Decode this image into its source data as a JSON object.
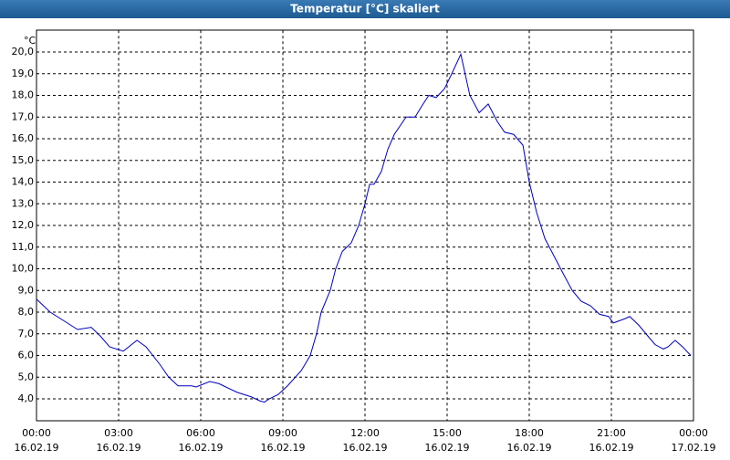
{
  "chart_data": {
    "type": "line",
    "title": "Temperatur [°C] skaliert",
    "y_label": "°C",
    "x": [
      0,
      0.5,
      1,
      1.5,
      2,
      2.33,
      2.67,
      3.17,
      3.67,
      4,
      4.5,
      4.83,
      5.17,
      5.67,
      5.83,
      6.33,
      6.67,
      6.83,
      7.33,
      7.83,
      8.17,
      8.33,
      8.5,
      8.83,
      9.17,
      9.67,
      10,
      10.23,
      10.4,
      10.73,
      10.93,
      11.17,
      11.5,
      11.77,
      12,
      12.17,
      12.33,
      12.6,
      12.83,
      13.07,
      13.5,
      13.83,
      14.07,
      14.33,
      14.6,
      14.9,
      15.17,
      15.5,
      15.83,
      16.17,
      16.5,
      16.83,
      17.1,
      17.43,
      17.77,
      18,
      18.27,
      18.57,
      18.9,
      19.23,
      19.57,
      19.9,
      20.23,
      20.57,
      20.9,
      21.07,
      21.5,
      21.67,
      22,
      22.33,
      22.6,
      22.9,
      23.07,
      23.33,
      23.6,
      23.9
    ],
    "series": [
      {
        "name": "Temperatur",
        "color": "#0000c0",
        "values": [
          8.6,
          8.0,
          7.6,
          7.2,
          7.3,
          6.9,
          6.4,
          6.2,
          6.7,
          6.4,
          5.6,
          5.0,
          4.6,
          4.6,
          4.55,
          4.8,
          4.7,
          4.6,
          4.3,
          4.1,
          3.9,
          3.85,
          4.0,
          4.2,
          4.6,
          5.3,
          6.0,
          7.0,
          8.0,
          9.0,
          10.0,
          10.8,
          11.2,
          12.0,
          13.0,
          13.9,
          13.9,
          14.5,
          15.5,
          16.2,
          17.0,
          17.0,
          17.5,
          18.0,
          17.9,
          18.3,
          19.0,
          19.9,
          18.0,
          17.2,
          17.6,
          16.8,
          16.3,
          16.2,
          15.7,
          14.0,
          12.6,
          11.4,
          10.6,
          9.8,
          9.0,
          8.5,
          8.3,
          7.9,
          7.8,
          7.5,
          7.7,
          7.8,
          7.4,
          6.9,
          6.5,
          6.3,
          6.4,
          6.7,
          6.4,
          6.0
        ]
      }
    ],
    "xlim": [
      0,
      24
    ],
    "xticks": [
      {
        "value": 0,
        "label": "00:00"
      },
      {
        "value": 3,
        "label": "03:00"
      },
      {
        "value": 6,
        "label": "06:00"
      },
      {
        "value": 9,
        "label": "09:00"
      },
      {
        "value": 12,
        "label": "12:00"
      },
      {
        "value": 15,
        "label": "15:00"
      },
      {
        "value": 18,
        "label": "18:00"
      },
      {
        "value": 21,
        "label": "21:00"
      },
      {
        "value": 24,
        "label": "00:00"
      }
    ],
    "xtick_dates": [
      "16.02.19",
      "16.02.19",
      "16.02.19",
      "16.02.19",
      "16.02.19",
      "16.02.19",
      "16.02.19",
      "16.02.19",
      "17.02.19"
    ],
    "ylim": [
      3.0,
      21.0
    ],
    "yticks": [
      {
        "value": 4,
        "label": "4,0"
      },
      {
        "value": 5,
        "label": "5,0"
      },
      {
        "value": 6,
        "label": "6,0"
      },
      {
        "value": 7,
        "label": "7,0"
      },
      {
        "value": 8,
        "label": "8,0"
      },
      {
        "value": 9,
        "label": "9,0"
      },
      {
        "value": 10,
        "label": "10,0"
      },
      {
        "value": 11,
        "label": "11,0"
      },
      {
        "value": 12,
        "label": "12,0"
      },
      {
        "value": 13,
        "label": "13,0"
      },
      {
        "value": 14,
        "label": "14,0"
      },
      {
        "value": 15,
        "label": "15,0"
      },
      {
        "value": 16,
        "label": "16,0"
      },
      {
        "value": 17,
        "label": "17,0"
      },
      {
        "value": 18,
        "label": "18,0"
      },
      {
        "value": 19,
        "label": "19,0"
      },
      {
        "value": 20,
        "label": "20,0"
      }
    ],
    "grid": true
  }
}
